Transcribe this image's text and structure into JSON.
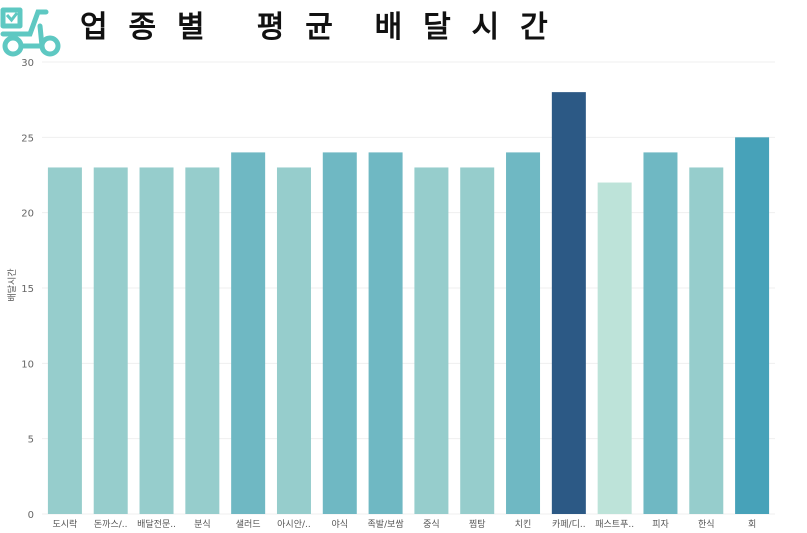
{
  "header": {
    "title": "업  종  별     평  균    배  달  시  간",
    "logo_icon": "delivery-scooter-icon",
    "logo_color": "#5ec8c2"
  },
  "chart_data": {
    "type": "bar",
    "title": "업 종 별 평균 배달시간",
    "xlabel": "",
    "ylabel": "배달시간",
    "ylim": [
      0,
      30
    ],
    "yticks": [
      0,
      5,
      10,
      15,
      20,
      25,
      30
    ],
    "grid": true,
    "legend": "none",
    "categories": [
      "도시락",
      "돈까스/..",
      "배달전문..",
      "분식",
      "샐러드",
      "아시안/..",
      "야식",
      "족발/보쌈",
      "중식",
      "찜탕",
      "치킨",
      "카페/디..",
      "패스트푸..",
      "피자",
      "한식",
      "회"
    ],
    "values": [
      23,
      23,
      23,
      23,
      24,
      23,
      24,
      24,
      23,
      23,
      24,
      28,
      22,
      24,
      23,
      25
    ],
    "colors": [
      "#96cdcc",
      "#96cdcc",
      "#96cdcc",
      "#96cdcc",
      "#6fb8c3",
      "#96cdcc",
      "#6fb8c3",
      "#6fb8c3",
      "#96cdcc",
      "#96cdcc",
      "#6fb8c3",
      "#2c5985",
      "#bde3d9",
      "#6fb8c3",
      "#96cdcc",
      "#47a2b9"
    ]
  }
}
